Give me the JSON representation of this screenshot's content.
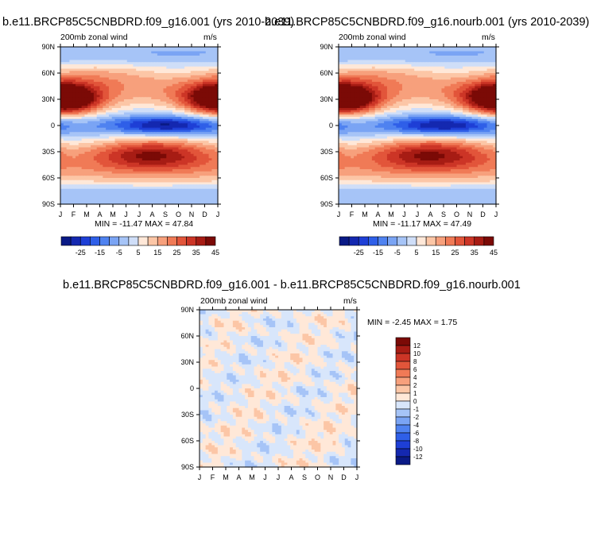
{
  "chart_data": [
    {
      "type": "heatmap",
      "title": "b.e11.BRCP85C5CNBDRD.f09_g16.001 (yrs 2010-2039)",
      "left_label": "200mb zonal wind",
      "right_label": "m/s",
      "x_ticks": [
        "J",
        "F",
        "M",
        "A",
        "M",
        "J",
        "J",
        "A",
        "S",
        "O",
        "N",
        "D",
        "J"
      ],
      "y_ticks": [
        "90N",
        "60N",
        "30N",
        "0",
        "30S",
        "60S",
        "90S"
      ],
      "ylim": [
        -90,
        90
      ],
      "stats": "MIN = -11.47 MAX =  47.84",
      "colorbar_labels": [
        "-25",
        "-15",
        "-5",
        "5",
        "15",
        "25",
        "35",
        "45"
      ],
      "levels": [
        -30,
        -25,
        -20,
        -15,
        -10,
        -5,
        0,
        5,
        10,
        15,
        20,
        25,
        30,
        35,
        40,
        45
      ],
      "colors": [
        "#0a1a86",
        "#1428b0",
        "#1e3fd6",
        "#2f5fe8",
        "#4f82f0",
        "#7aa4f4",
        "#a6c4f7",
        "#cfdef8",
        "#ffe8d8",
        "#fcc6a6",
        "#f7a07c",
        "#f07a56",
        "#e2553a",
        "#cc3526",
        "#a71c14",
        "#7b0a06"
      ],
      "features": [
        {
          "lat": 30,
          "month": 0.5,
          "value": 47.8,
          "w_lat": 13,
          "w_month": 1.8
        },
        {
          "lat": 30,
          "month": 12,
          "value": 40,
          "w_lat": 12,
          "w_month": 2
        },
        {
          "lat": 0,
          "month": 8,
          "value": -11.5,
          "w_lat": 7,
          "w_month": 2.5
        },
        {
          "lat": -32,
          "month": 7,
          "value": 44,
          "w_lat": 13,
          "w_month": 3
        }
      ]
    },
    {
      "type": "heatmap",
      "title": "b.e11.BRCP85C5CNBDRD.f09_g16.nourb.001 (yrs 2010-2039)",
      "left_label": "200mb zonal wind",
      "right_label": "m/s",
      "x_ticks": [
        "J",
        "F",
        "M",
        "A",
        "M",
        "J",
        "J",
        "A",
        "S",
        "O",
        "N",
        "D",
        "J"
      ],
      "y_ticks": [
        "90N",
        "60N",
        "30N",
        "0",
        "30S",
        "60S",
        "90S"
      ],
      "ylim": [
        -90,
        90
      ],
      "stats": "MIN = -11.17 MAX =  47.49",
      "colorbar_labels": [
        "-25",
        "-15",
        "-5",
        "5",
        "15",
        "25",
        "35",
        "45"
      ],
      "levels": [
        -30,
        -25,
        -20,
        -15,
        -10,
        -5,
        0,
        5,
        10,
        15,
        20,
        25,
        30,
        35,
        40,
        45
      ],
      "colors": [
        "#0a1a86",
        "#1428b0",
        "#1e3fd6",
        "#2f5fe8",
        "#4f82f0",
        "#7aa4f4",
        "#a6c4f7",
        "#cfdef8",
        "#ffe8d8",
        "#fcc6a6",
        "#f7a07c",
        "#f07a56",
        "#e2553a",
        "#cc3526",
        "#a71c14",
        "#7b0a06"
      ],
      "features": [
        {
          "lat": 30,
          "month": 0.5,
          "value": 47.5,
          "w_lat": 13,
          "w_month": 1.8
        },
        {
          "lat": 30,
          "month": 12,
          "value": 40,
          "w_lat": 12,
          "w_month": 2
        },
        {
          "lat": 0,
          "month": 8,
          "value": -11.2,
          "w_lat": 7,
          "w_month": 2.5
        },
        {
          "lat": -32,
          "month": 7,
          "value": 44,
          "w_lat": 13,
          "w_month": 3
        }
      ]
    },
    {
      "type": "heatmap",
      "title": "b.e11.BRCP85C5CNBDRD.f09_g16.001 - b.e11.BRCP85C5CNBDRD.f09_g16.nourb.001",
      "left_label": "200mb zonal wind",
      "right_label": "m/s",
      "x_ticks": [
        "J",
        "F",
        "M",
        "A",
        "M",
        "J",
        "J",
        "A",
        "S",
        "O",
        "N",
        "D",
        "J"
      ],
      "y_ticks": [
        "90N",
        "60N",
        "30N",
        "0",
        "30S",
        "60S",
        "90S"
      ],
      "ylim": [
        -90,
        90
      ],
      "stats": "MIN = -2.45 MAX =   1.75",
      "colorbar_labels": [
        "12",
        "10",
        "8",
        "6",
        "4",
        "2",
        "1",
        "0",
        "-1",
        "-2",
        "-4",
        "-6",
        "-8",
        "-10",
        "-12"
      ],
      "levels": [
        -12,
        -10,
        -8,
        -6,
        -4,
        -2,
        -1,
        0,
        1,
        2,
        4,
        6,
        8,
        10,
        12
      ],
      "colors": [
        "#0a1a86",
        "#1428b0",
        "#1e3fd6",
        "#2f5fe8",
        "#4f82f0",
        "#7aa4f4",
        "#a6c4f7",
        "#d8e6fb",
        "#ffe8d8",
        "#fcc6a6",
        "#f7a07c",
        "#f07a56",
        "#e2553a",
        "#cc3526",
        "#a71c14",
        "#7b0a06"
      ],
      "features": []
    }
  ]
}
